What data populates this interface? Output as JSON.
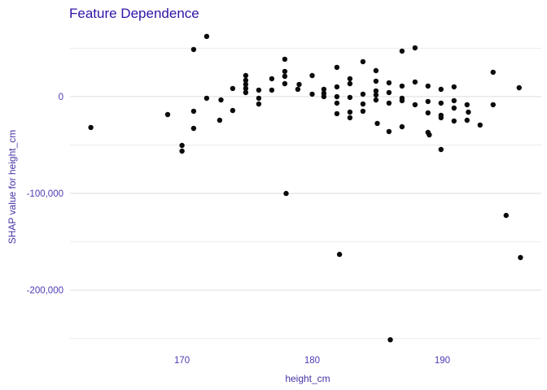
{
  "chart": {
    "title": "Feature Dependence",
    "x_axis_title": "height_cm",
    "y_axis_title": "SHAP value for height_cm"
  },
  "colors": {
    "background": "#ffffff",
    "title_text": "#3113a8",
    "axis_title_text": "#4434a6",
    "tick_label_text": "#4b3cb5",
    "grid_major": "#dedede",
    "grid_minor": "#ebebeb",
    "point": "#0b0b0b"
  },
  "chart_data": {
    "type": "scatter",
    "title": "Feature Dependence",
    "xlabel": "height_cm",
    "ylabel": "SHAP value for height_cm",
    "xlim": [
      161.4,
      197.6
    ],
    "ylim": [
      -267000,
      78000
    ],
    "grid": "horizontal-only",
    "legend": "none",
    "x_ticks": [
      {
        "value": 170,
        "label": "170"
      },
      {
        "value": 180,
        "label": "180"
      },
      {
        "value": 190,
        "label": "190"
      }
    ],
    "y_ticks": [
      {
        "value": 0,
        "label": "0"
      },
      {
        "value": -100000,
        "label": "-100,000"
      },
      {
        "value": -200000,
        "label": "-200,000"
      }
    ],
    "y_minor_gridlines": [
      50000,
      -50000,
      -150000,
      -250000
    ],
    "points": [
      [
        163.0,
        -31900
      ],
      [
        168.9,
        -18500
      ],
      [
        170.0,
        -50400
      ],
      [
        170.0,
        -56300
      ],
      [
        170.9,
        48700
      ],
      [
        170.9,
        -15100
      ],
      [
        170.9,
        -32800
      ],
      [
        171.9,
        62200
      ],
      [
        171.9,
        -1700
      ],
      [
        172.9,
        -24400
      ],
      [
        173.0,
        -3400
      ],
      [
        173.9,
        8400
      ],
      [
        173.9,
        -14300
      ],
      [
        174.9,
        21800
      ],
      [
        174.9,
        16800
      ],
      [
        174.9,
        12600
      ],
      [
        174.9,
        8400
      ],
      [
        174.9,
        4200
      ],
      [
        175.9,
        6700
      ],
      [
        175.9,
        -1700
      ],
      [
        175.9,
        -7600
      ],
      [
        176.9,
        18500
      ],
      [
        176.9,
        6700
      ],
      [
        177.9,
        38600
      ],
      [
        177.9,
        26000
      ],
      [
        177.9,
        21000
      ],
      [
        177.9,
        13400
      ],
      [
        178.0,
        -100000
      ],
      [
        178.9,
        7600
      ],
      [
        179.0,
        12600
      ],
      [
        180.0,
        21800
      ],
      [
        180.0,
        2500
      ],
      [
        180.9,
        7600
      ],
      [
        180.9,
        3400
      ],
      [
        180.9,
        0
      ],
      [
        181.9,
        30200
      ],
      [
        181.9,
        10100
      ],
      [
        181.9,
        -100
      ],
      [
        181.9,
        -6700
      ],
      [
        181.9,
        -17600
      ],
      [
        182.1,
        -163000
      ],
      [
        182.9,
        18500
      ],
      [
        182.9,
        13400
      ],
      [
        182.9,
        -800
      ],
      [
        182.9,
        -16000
      ],
      [
        182.9,
        -21800
      ],
      [
        183.9,
        36100
      ],
      [
        183.9,
        2500
      ],
      [
        183.9,
        -7600
      ],
      [
        183.9,
        -15100
      ],
      [
        184.9,
        26900
      ],
      [
        184.9,
        16000
      ],
      [
        184.9,
        5900
      ],
      [
        184.9,
        1700
      ],
      [
        184.9,
        -3400
      ],
      [
        185.0,
        -27700
      ],
      [
        185.9,
        14300
      ],
      [
        185.9,
        4200
      ],
      [
        185.9,
        -6700
      ],
      [
        185.9,
        -36100
      ],
      [
        186.0,
        -251200
      ],
      [
        186.9,
        47000
      ],
      [
        186.9,
        10900
      ],
      [
        186.9,
        -1700
      ],
      [
        186.9,
        -4200
      ],
      [
        186.9,
        -31100
      ],
      [
        187.9,
        50400
      ],
      [
        187.9,
        15100
      ],
      [
        187.9,
        -8400
      ],
      [
        188.9,
        10900
      ],
      [
        188.9,
        -5000
      ],
      [
        188.9,
        -16800
      ],
      [
        188.9,
        -37000
      ],
      [
        189.0,
        -39500
      ],
      [
        189.9,
        7600
      ],
      [
        189.9,
        -6700
      ],
      [
        189.9,
        -19300
      ],
      [
        189.9,
        -21800
      ],
      [
        189.9,
        -54600
      ],
      [
        190.9,
        10100
      ],
      [
        190.9,
        -4200
      ],
      [
        190.9,
        -11800
      ],
      [
        190.9,
        -25200
      ],
      [
        191.9,
        -8400
      ],
      [
        191.9,
        -24400
      ],
      [
        192.0,
        -16000
      ],
      [
        192.9,
        -29400
      ],
      [
        193.9,
        25200
      ],
      [
        193.9,
        -8400
      ],
      [
        194.9,
        -122700
      ],
      [
        196.0,
        -166300
      ],
      [
        195.9,
        9200
      ]
    ]
  }
}
